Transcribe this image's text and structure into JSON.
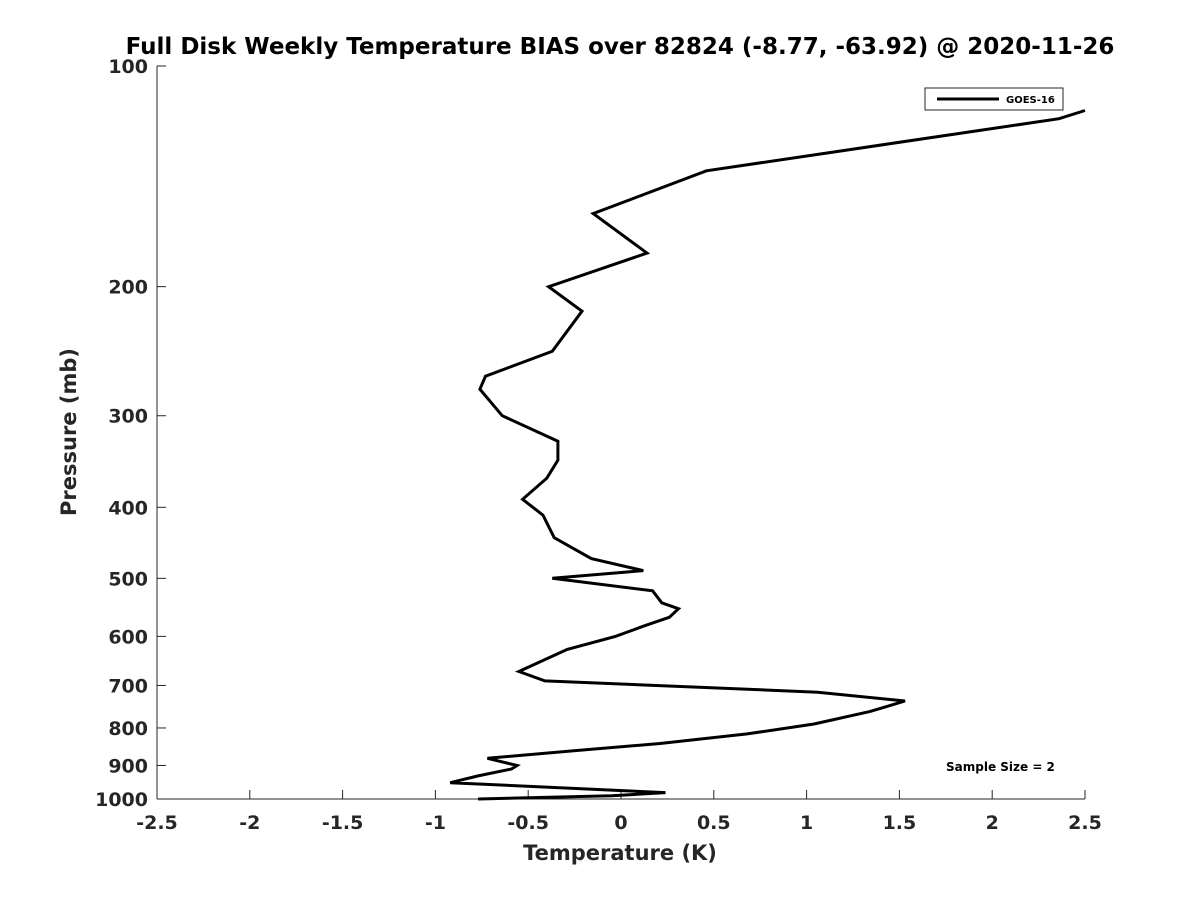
{
  "chart_data": {
    "type": "line",
    "title": "Full Disk Weekly Temperature BIAS over 82824 (-8.77, -63.92) @ 2020-11-26",
    "xlabel": "Temperature (K)",
    "ylabel": "Pressure (mb)",
    "xlim": [
      -2.5,
      2.5
    ],
    "ylim": [
      1000,
      100
    ],
    "y_scale": "log",
    "y_reversed": true,
    "grid": false,
    "legend_placement": "top-right",
    "x_ticks": [
      -2.5,
      -2,
      -1.5,
      -1,
      -0.5,
      0,
      0.5,
      1,
      1.5,
      2,
      2.5
    ],
    "x_tick_labels": [
      "-2.5",
      "-2",
      "-1.5",
      "-1",
      "-0.5",
      "0",
      "0.5",
      "1",
      "1.5",
      "2",
      "2.5"
    ],
    "y_ticks": [
      100,
      200,
      300,
      400,
      500,
      600,
      700,
      800,
      900,
      1000
    ],
    "y_tick_labels": [
      "100",
      "200",
      "300",
      "400",
      "500",
      "600",
      "700",
      "800",
      "900",
      "1000"
    ],
    "series": [
      {
        "name": "GOES-16",
        "color": "#000000",
        "x": [
          2.5,
          2.36,
          0.46,
          -0.15,
          0.14,
          -0.39,
          -0.21,
          -0.37,
          -0.73,
          -0.76,
          -0.64,
          -0.34,
          -0.34,
          -0.4,
          -0.53,
          -0.42,
          -0.36,
          -0.16,
          0.12,
          -0.37,
          0.17,
          0.22,
          0.31,
          0.26,
          0.13,
          -0.03,
          -0.29,
          -0.55,
          -0.41,
          1.06,
          1.53,
          1.34,
          1.04,
          0.68,
          0.21,
          -0.27,
          -0.72,
          -0.56,
          -0.59,
          -0.77,
          -0.92,
          0.24,
          -0.05,
          -0.77
        ],
        "y": [
          115,
          118,
          139,
          159,
          180,
          200,
          216,
          245,
          265,
          276,
          300,
          325,
          345,
          365,
          390,
          410,
          440,
          470,
          488,
          500,
          520,
          540,
          550,
          565,
          580,
          600,
          625,
          670,
          690,
          715,
          735,
          760,
          790,
          815,
          840,
          860,
          880,
          900,
          910,
          930,
          950,
          980,
          990,
          1000
        ]
      }
    ],
    "annotations": [
      "Sample Size = 2"
    ]
  }
}
